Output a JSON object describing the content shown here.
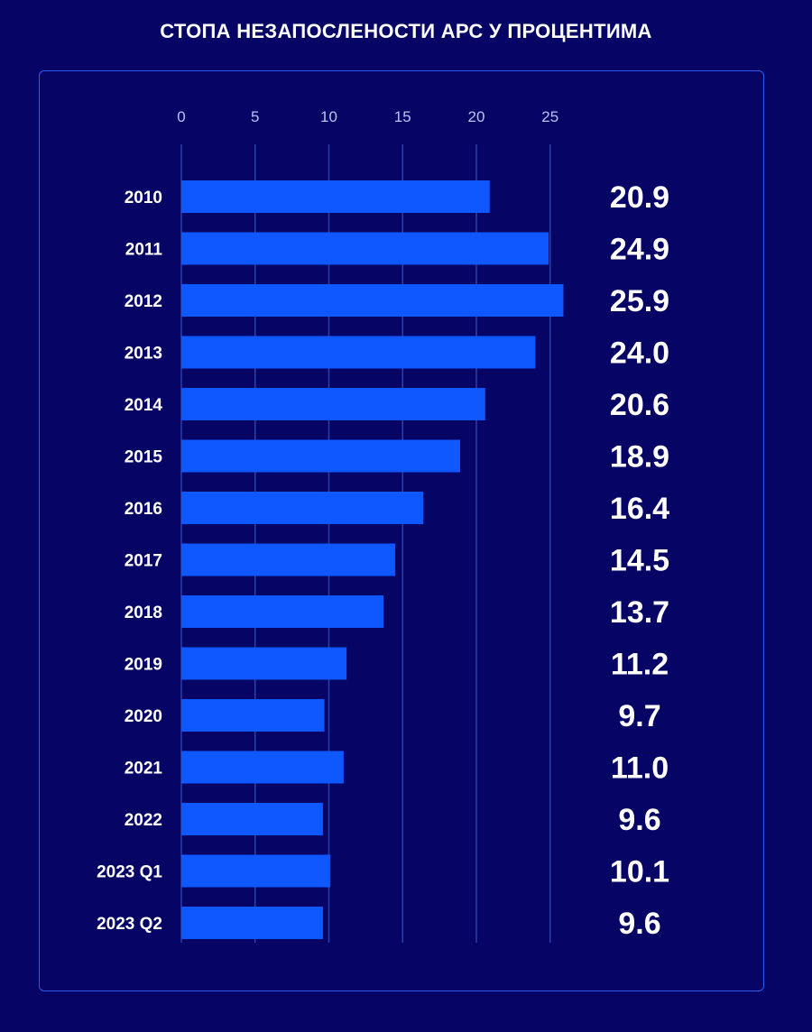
{
  "title": "СТОПА НЕЗАПОСЛЕНОСТИ АРС У ПРОЦЕНТИМА",
  "colors": {
    "background": "#060566",
    "bar": "#0f57ff",
    "panel_border": "#2a5cf0",
    "gridline": "#2a3fa8",
    "tick_text": "#b8c4f5",
    "label_text": "#ffffff"
  },
  "chart_data": {
    "type": "bar",
    "orientation": "horizontal",
    "title": "СТОПА НЕЗАПОСЛЕНОСТИ АРС У ПРОЦЕНТИМА",
    "xlabel": "",
    "ylabel": "",
    "xlim": [
      0,
      25
    ],
    "x_ticks": [
      0,
      5,
      10,
      15,
      20,
      25
    ],
    "grid": true,
    "categories": [
      "2010",
      "2011",
      "2012",
      "2013",
      "2014",
      "2015",
      "2016",
      "2017",
      "2018",
      "2019",
      "2020",
      "2021",
      "2022",
      "2023 Q1",
      "2023 Q2"
    ],
    "values": [
      20.9,
      24.9,
      25.9,
      24.0,
      20.6,
      18.9,
      16.4,
      14.5,
      13.7,
      11.2,
      9.7,
      11.0,
      9.6,
      10.1,
      9.6
    ],
    "value_labels": [
      "20.9",
      "24.9",
      "25.9",
      "24.0",
      "20.6",
      "18.9",
      "16.4",
      "14.5",
      "13.7",
      "11.2",
      "9.7",
      "11.0",
      "9.6",
      "10.1",
      "9.6"
    ]
  }
}
